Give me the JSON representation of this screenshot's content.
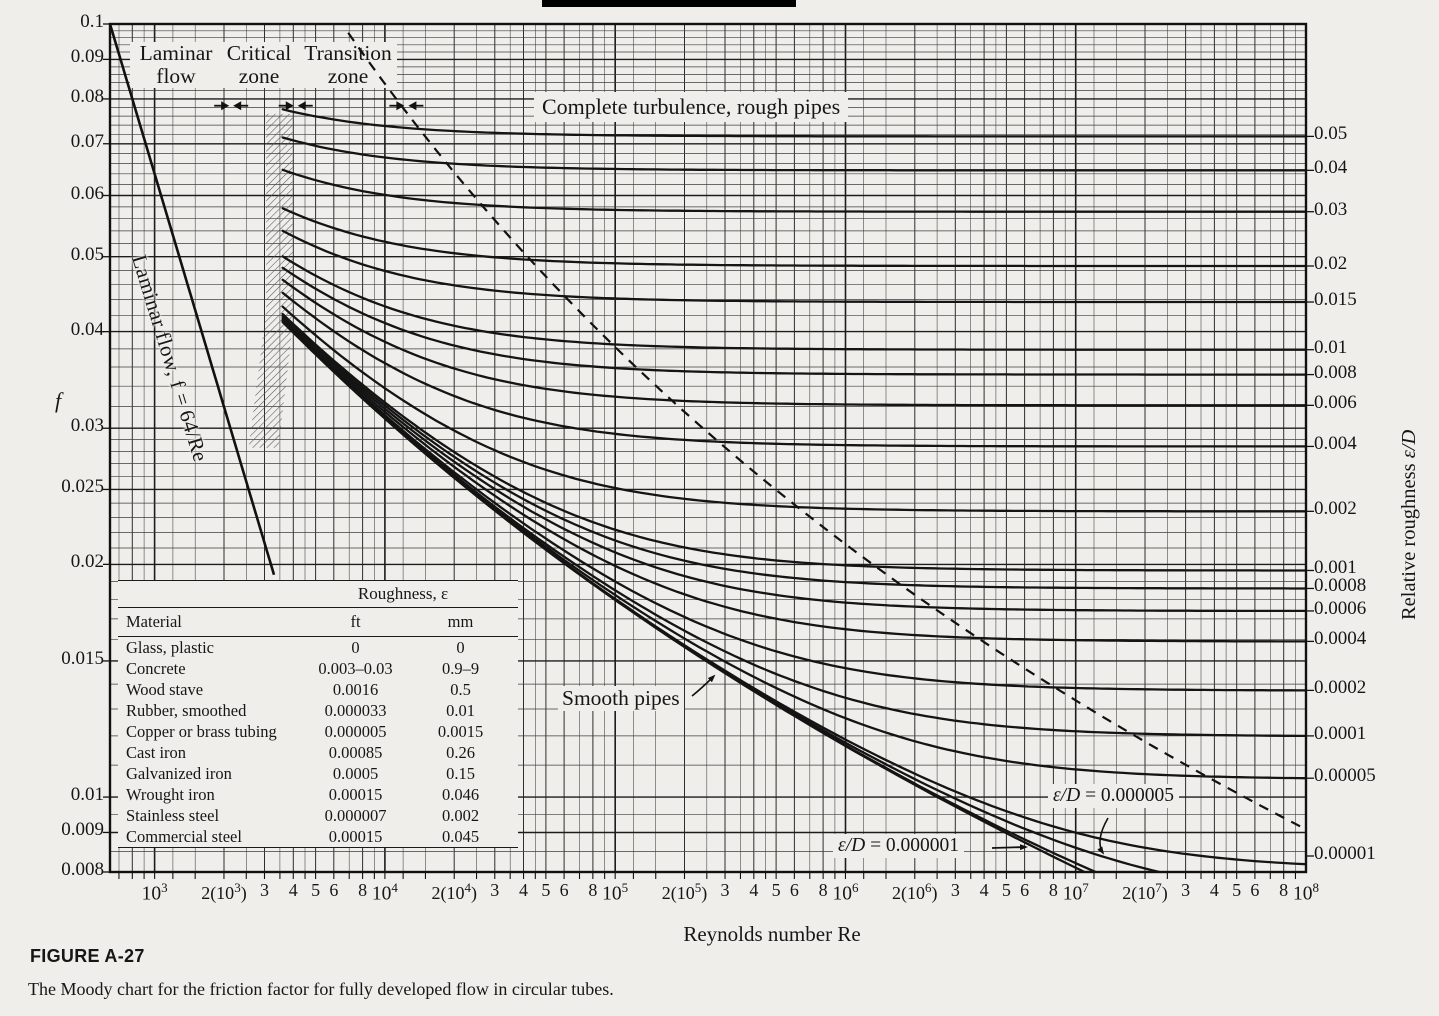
{
  "page": {
    "bg": "#f0eeea",
    "ink": "#161616",
    "top_bar_color": "#000000"
  },
  "figure": {
    "id": "FIGURE A-27",
    "caption": "The Moody chart for the friction factor for fully developed flow in circular tubes."
  },
  "axes": {
    "x": {
      "title": "Reynolds number Re",
      "ticks": [
        {
          "re": 1000,
          "label": "10^3"
        },
        {
          "re": 2000,
          "label": "2(10^3)"
        },
        {
          "re": 3000,
          "label": "3"
        },
        {
          "re": 4000,
          "label": "4"
        },
        {
          "re": 5000,
          "label": "5"
        },
        {
          "re": 6000,
          "label": "6"
        },
        {
          "re": 8000,
          "label": "8"
        },
        {
          "re": 10000,
          "label": "10^4"
        },
        {
          "re": 20000,
          "label": "2(10^4)"
        },
        {
          "re": 30000,
          "label": "3"
        },
        {
          "re": 40000,
          "label": "4"
        },
        {
          "re": 50000,
          "label": "5"
        },
        {
          "re": 60000,
          "label": "6"
        },
        {
          "re": 80000,
          "label": "8"
        },
        {
          "re": 100000,
          "label": "10^5"
        },
        {
          "re": 200000,
          "label": "2(10^5)"
        },
        {
          "re": 300000,
          "label": "3"
        },
        {
          "re": 400000,
          "label": "4"
        },
        {
          "re": 500000,
          "label": "5"
        },
        {
          "re": 600000,
          "label": "6"
        },
        {
          "re": 800000,
          "label": "8"
        },
        {
          "re": 1000000,
          "label": "10^6"
        },
        {
          "re": 2000000,
          "label": "2(10^6)"
        },
        {
          "re": 3000000,
          "label": "3"
        },
        {
          "re": 4000000,
          "label": "4"
        },
        {
          "re": 5000000,
          "label": "5"
        },
        {
          "re": 6000000,
          "label": "6"
        },
        {
          "re": 8000000,
          "label": "8"
        },
        {
          "re": 10000000,
          "label": "10^7"
        },
        {
          "re": 20000000,
          "label": "2(10^7)"
        },
        {
          "re": 30000000,
          "label": "3"
        },
        {
          "re": 40000000,
          "label": "4"
        },
        {
          "re": 50000000,
          "label": "5"
        },
        {
          "re": 60000000,
          "label": "6"
        },
        {
          "re": 80000000,
          "label": "8"
        },
        {
          "re": 100000000,
          "label": "10^8"
        }
      ]
    },
    "y_left": {
      "title": "f",
      "ticks": [
        {
          "f": 0.1,
          "label": "0.1"
        },
        {
          "f": 0.09,
          "label": "0.09"
        },
        {
          "f": 0.08,
          "label": "0.08"
        },
        {
          "f": 0.07,
          "label": "0.07"
        },
        {
          "f": 0.06,
          "label": "0.06"
        },
        {
          "f": 0.05,
          "label": "0.05"
        },
        {
          "f": 0.04,
          "label": "0.04"
        },
        {
          "f": 0.03,
          "label": "0.03"
        },
        {
          "f": 0.025,
          "label": "0.025"
        },
        {
          "f": 0.02,
          "label": "0.02"
        },
        {
          "f": 0.015,
          "label": "0.015"
        },
        {
          "f": 0.01,
          "label": "0.01"
        },
        {
          "f": 0.009,
          "label": "0.009"
        },
        {
          "f": 0.008,
          "label": "0.008"
        }
      ]
    },
    "y_right": {
      "title_text": "Relative roughness ",
      "title_math": "ε/D"
    }
  },
  "chart_data": {
    "type": "line",
    "x_axis": {
      "label": "Reynolds number Re",
      "scale": "log",
      "range": [
        640,
        100000000
      ]
    },
    "y_axis": {
      "label": "f (friction factor)",
      "scale": "log",
      "range": [
        0.008,
        0.1
      ]
    },
    "laminar_line": {
      "formula": "f = 64/Re",
      "re_range": [
        640,
        3300
      ]
    },
    "turbulent_formula": "Colebrook: 1/sqrt(f) = -2 log10( (eps/D)/3.7 + 2.51/(Re sqrt(f)) )",
    "transition_boundary_dashed": "Re = 200/((eps/D) sqrt(f)) at fully rough f",
    "turbulent_re_start": 3600,
    "series": [
      {
        "eps_over_D": 0.05,
        "right_label": "0.05",
        "f_at_re_1e8": 0.0716
      },
      {
        "eps_over_D": 0.04,
        "right_label": "0.04",
        "f_at_re_1e8": 0.0647
      },
      {
        "eps_over_D": 0.03,
        "right_label": "0.03",
        "f_at_re_1e8": 0.0572
      },
      {
        "eps_over_D": 0.02,
        "right_label": "0.02",
        "f_at_re_1e8": 0.0486
      },
      {
        "eps_over_D": 0.015,
        "right_label": "0.015",
        "f_at_re_1e8": 0.0437
      },
      {
        "eps_over_D": 0.01,
        "right_label": "0.01",
        "f_at_re_1e8": 0.038
      },
      {
        "eps_over_D": 0.008,
        "right_label": "0.008",
        "f_at_re_1e8": 0.0352
      },
      {
        "eps_over_D": 0.006,
        "right_label": "0.006",
        "f_at_re_1e8": 0.0321
      },
      {
        "eps_over_D": 0.004,
        "right_label": "0.004",
        "f_at_re_1e8": 0.0285
      },
      {
        "eps_over_D": 0.002,
        "right_label": "0.002",
        "f_at_re_1e8": 0.0234
      },
      {
        "eps_over_D": 0.001,
        "right_label": "0.001",
        "f_at_re_1e8": 0.0197
      },
      {
        "eps_over_D": 0.0008,
        "right_label": "0.0008",
        "f_at_re_1e8": 0.0186
      },
      {
        "eps_over_D": 0.0006,
        "right_label": "0.0006",
        "f_at_re_1e8": 0.0174
      },
      {
        "eps_over_D": 0.0004,
        "right_label": "0.0004",
        "f_at_re_1e8": 0.016
      },
      {
        "eps_over_D": 0.0002,
        "right_label": "0.0002",
        "f_at_re_1e8": 0.0138
      },
      {
        "eps_over_D": 0.0001,
        "right_label": "0.0001",
        "f_at_re_1e8": 0.012
      },
      {
        "eps_over_D": 5e-05,
        "right_label": "0.00005",
        "f_at_re_1e8": 0.0106
      },
      {
        "eps_over_D": 1e-05,
        "right_label": "0.00001",
        "f_at_re_1e8": 0.0082
      },
      {
        "eps_over_D": 5e-06,
        "right_label": null,
        "f_at_re_1e8": 0.0075
      },
      {
        "eps_over_D": 1e-06,
        "right_label": null,
        "f_at_re_1e8": 0.0064
      },
      {
        "eps_over_D": 0,
        "right_label": null,
        "f_at_re_1e8": 0.0059
      }
    ]
  },
  "zones": {
    "marker_f": 0.0784,
    "marker_res": [
      2150,
      4100,
      12400
    ],
    "labels": [
      {
        "line1": "Laminar",
        "line2": "flow"
      },
      {
        "line1": "Critical",
        "line2": "zone"
      },
      {
        "line1": "Transition",
        "line2": "zone"
      }
    ]
  },
  "annotations": {
    "complete_turbulence": "Complete turbulence, rough pipes",
    "smooth_pipes": "Smooth pipes",
    "laminar_eq": "Laminar flow, f = 64/Re",
    "eps_5": {
      "math": "ε/D",
      "rest": " = 0.000005"
    },
    "eps_1": {
      "math": "ε/D",
      "rest": " = 0.000001"
    }
  },
  "table": {
    "title": "Roughness, ε",
    "headers": [
      "Material",
      "ft",
      "mm"
    ],
    "rows": [
      [
        "Glass, plastic",
        "0",
        "0"
      ],
      [
        "Concrete",
        "0.003–0.03",
        "0.9–9"
      ],
      [
        "Wood stave",
        "0.0016",
        "0.5"
      ],
      [
        "Rubber, smoothed",
        "0.000033",
        "0.01"
      ],
      [
        "Copper or brass tubing",
        "0.000005",
        "0.0015"
      ],
      [
        "Cast iron",
        "0.00085",
        "0.26"
      ],
      [
        "Galvanized iron",
        "0.0005",
        "0.15"
      ],
      [
        "Wrought iron",
        "0.00015",
        "0.046"
      ],
      [
        "Stainless steel",
        "0.000007",
        "0.002"
      ],
      [
        "Commercial steel",
        "0.00015",
        "0.045"
      ]
    ]
  }
}
